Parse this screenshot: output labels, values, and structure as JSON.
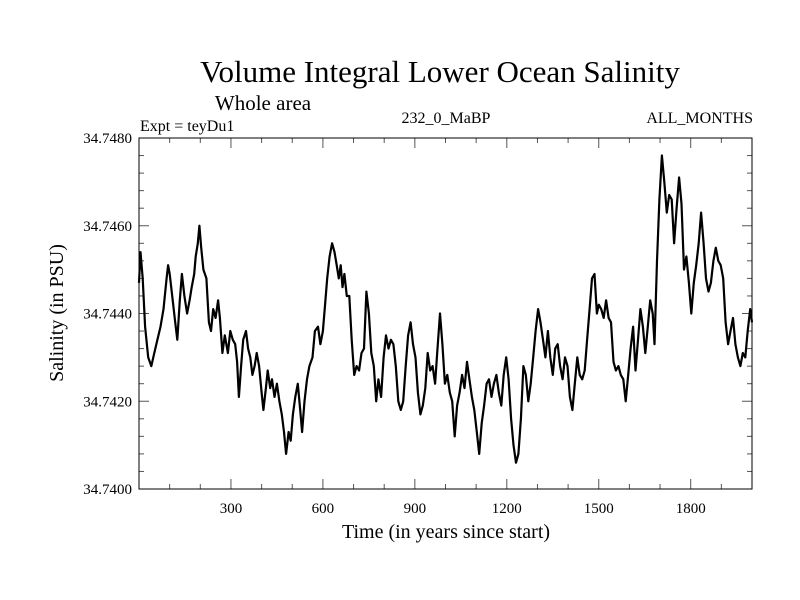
{
  "chart_data": {
    "type": "line",
    "title": "Volume Integral Lower Ocean Salinity",
    "subtitle": "Whole area",
    "annotations": {
      "left": "Expt = teyDu1",
      "center": "232_0_MaBP",
      "right": "ALL_MONTHS"
    },
    "xlabel": "Time (in years since start)",
    "ylabel": "Salinity (in PSU)",
    "xlim": [
      0,
      2000
    ],
    "ylim": [
      34.74,
      34.748
    ],
    "xticks": [
      300,
      600,
      900,
      1200,
      1500,
      1800
    ],
    "xtick_labels": [
      "300",
      "600",
      "900",
      "1200",
      "1500",
      "1800"
    ],
    "x_minor_step": 100,
    "yticks": [
      34.74,
      34.742,
      34.744,
      34.746,
      34.748
    ],
    "ytick_labels": [
      "34.7400",
      "34.7420",
      "34.7440",
      "34.7460",
      "34.7480"
    ],
    "y_minor_step": 0.0004,
    "grid": false,
    "legend": "none",
    "series": [
      {
        "name": "Salinity",
        "color": "#000000",
        "points": [
          [
            0,
            34.7447
          ],
          [
            5,
            34.7454
          ],
          [
            12,
            34.7448
          ],
          [
            20,
            34.7437
          ],
          [
            30,
            34.743
          ],
          [
            40,
            34.7428
          ],
          [
            50,
            34.7431
          ],
          [
            60,
            34.7434
          ],
          [
            70,
            34.7437
          ],
          [
            80,
            34.7441
          ],
          [
            90,
            34.7448
          ],
          [
            95,
            34.7451
          ],
          [
            100,
            34.7449
          ],
          [
            110,
            34.7443
          ],
          [
            118,
            34.7438
          ],
          [
            125,
            34.7434
          ],
          [
            133,
            34.7443
          ],
          [
            140,
            34.7449
          ],
          [
            148,
            34.7444
          ],
          [
            157,
            34.744
          ],
          [
            165,
            34.7443
          ],
          [
            172,
            34.7446
          ],
          [
            180,
            34.7449
          ],
          [
            185,
            34.7453
          ],
          [
            192,
            34.7456
          ],
          [
            197,
            34.746
          ],
          [
            203,
            34.7455
          ],
          [
            210,
            34.745
          ],
          [
            220,
            34.7448
          ],
          [
            228,
            34.7438
          ],
          [
            235,
            34.7436
          ],
          [
            242,
            34.7441
          ],
          [
            250,
            34.7439
          ],
          [
            258,
            34.7443
          ],
          [
            264,
            34.7439
          ],
          [
            272,
            34.7431
          ],
          [
            280,
            34.7435
          ],
          [
            290,
            34.7431
          ],
          [
            298,
            34.7436
          ],
          [
            306,
            34.7434
          ],
          [
            314,
            34.7433
          ],
          [
            320,
            34.7429
          ],
          [
            326,
            34.7421
          ],
          [
            333,
            34.7428
          ],
          [
            340,
            34.7434
          ],
          [
            349,
            34.7436
          ],
          [
            356,
            34.7432
          ],
          [
            363,
            34.743
          ],
          [
            370,
            34.7426
          ],
          [
            377,
            34.7428
          ],
          [
            384,
            34.7431
          ],
          [
            392,
            34.7428
          ],
          [
            400,
            34.7422
          ],
          [
            406,
            34.7418
          ],
          [
            414,
            34.7423
          ],
          [
            420,
            34.7427
          ],
          [
            428,
            34.7423
          ],
          [
            434,
            34.7425
          ],
          [
            442,
            34.7421
          ],
          [
            450,
            34.7424
          ],
          [
            458,
            34.742
          ],
          [
            466,
            34.7417
          ],
          [
            473,
            34.7413
          ],
          [
            480,
            34.7408
          ],
          [
            488,
            34.7413
          ],
          [
            495,
            34.7411
          ],
          [
            502,
            34.7417
          ],
          [
            510,
            34.7421
          ],
          [
            518,
            34.7424
          ],
          [
            526,
            34.7418
          ],
          [
            532,
            34.7413
          ],
          [
            540,
            34.742
          ],
          [
            548,
            34.7425
          ],
          [
            556,
            34.7428
          ],
          [
            566,
            34.743
          ],
          [
            574,
            34.7436
          ],
          [
            584,
            34.7437
          ],
          [
            592,
            34.7433
          ],
          [
            600,
            34.7436
          ],
          [
            606,
            34.7441
          ],
          [
            614,
            34.7448
          ],
          [
            622,
            34.7453
          ],
          [
            630,
            34.7456
          ],
          [
            638,
            34.7454
          ],
          [
            645,
            34.7451
          ],
          [
            652,
            34.7448
          ],
          [
            658,
            34.7451
          ],
          [
            664,
            34.7446
          ],
          [
            670,
            34.7449
          ],
          [
            678,
            34.7444
          ],
          [
            686,
            34.7444
          ],
          [
            694,
            34.7434
          ],
          [
            702,
            34.7426
          ],
          [
            710,
            34.7428
          ],
          [
            718,
            34.7427
          ],
          [
            726,
            34.7431
          ],
          [
            734,
            34.7432
          ],
          [
            742,
            34.7445
          ],
          [
            750,
            34.744
          ],
          [
            758,
            34.7431
          ],
          [
            766,
            34.7428
          ],
          [
            774,
            34.742
          ],
          [
            781,
            34.7425
          ],
          [
            790,
            34.7421
          ],
          [
            798,
            34.743
          ],
          [
            806,
            34.7435
          ],
          [
            814,
            34.7432
          ],
          [
            822,
            34.7434
          ],
          [
            830,
            34.7433
          ],
          [
            838,
            34.7428
          ],
          [
            846,
            34.742
          ],
          [
            854,
            34.7418
          ],
          [
            862,
            34.742
          ],
          [
            870,
            34.7428
          ],
          [
            878,
            34.7435
          ],
          [
            886,
            34.7438
          ],
          [
            894,
            34.7433
          ],
          [
            902,
            34.743
          ],
          [
            910,
            34.7422
          ],
          [
            918,
            34.7417
          ],
          [
            926,
            34.7419
          ],
          [
            934,
            34.7423
          ],
          [
            942,
            34.7431
          ],
          [
            950,
            34.7427
          ],
          [
            958,
            34.7428
          ],
          [
            966,
            34.7424
          ],
          [
            974,
            34.7432
          ],
          [
            982,
            34.744
          ],
          [
            990,
            34.7433
          ],
          [
            998,
            34.7424
          ],
          [
            1006,
            34.7426
          ],
          [
            1014,
            34.7422
          ],
          [
            1022,
            34.742
          ],
          [
            1030,
            34.7412
          ],
          [
            1038,
            34.7419
          ],
          [
            1046,
            34.7422
          ],
          [
            1054,
            34.7426
          ],
          [
            1062,
            34.7423
          ],
          [
            1070,
            34.7429
          ],
          [
            1078,
            34.7425
          ],
          [
            1086,
            34.7421
          ],
          [
            1094,
            34.7418
          ],
          [
            1102,
            34.7413
          ],
          [
            1110,
            34.7408
          ],
          [
            1118,
            34.7415
          ],
          [
            1126,
            34.7419
          ],
          [
            1134,
            34.7424
          ],
          [
            1142,
            34.7425
          ],
          [
            1150,
            34.7421
          ],
          [
            1158,
            34.7424
          ],
          [
            1166,
            34.7426
          ],
          [
            1174,
            34.7422
          ],
          [
            1182,
            34.7419
          ],
          [
            1190,
            34.7426
          ],
          [
            1198,
            34.743
          ],
          [
            1206,
            34.7425
          ],
          [
            1214,
            34.7416
          ],
          [
            1222,
            34.741
          ],
          [
            1230,
            34.7406
          ],
          [
            1238,
            34.7408
          ],
          [
            1246,
            34.7416
          ],
          [
            1254,
            34.7428
          ],
          [
            1262,
            34.7426
          ],
          [
            1270,
            34.742
          ],
          [
            1278,
            34.7424
          ],
          [
            1286,
            34.743
          ],
          [
            1294,
            34.7436
          ],
          [
            1302,
            34.7441
          ],
          [
            1310,
            34.7438
          ],
          [
            1318,
            34.7434
          ],
          [
            1326,
            34.743
          ],
          [
            1334,
            34.7436
          ],
          [
            1342,
            34.743
          ],
          [
            1350,
            34.7426
          ],
          [
            1358,
            34.7432
          ],
          [
            1366,
            34.7433
          ],
          [
            1374,
            34.7428
          ],
          [
            1382,
            34.7425
          ],
          [
            1390,
            34.743
          ],
          [
            1398,
            34.7428
          ],
          [
            1406,
            34.7421
          ],
          [
            1414,
            34.7418
          ],
          [
            1422,
            34.7424
          ],
          [
            1430,
            34.743
          ],
          [
            1438,
            34.7426
          ],
          [
            1446,
            34.7425
          ],
          [
            1454,
            34.7427
          ],
          [
            1462,
            34.7434
          ],
          [
            1470,
            34.7441
          ],
          [
            1478,
            34.7448
          ],
          [
            1486,
            34.7449
          ],
          [
            1494,
            34.744
          ],
          [
            1500,
            34.7442
          ],
          [
            1508,
            34.7441
          ],
          [
            1516,
            34.7439
          ],
          [
            1524,
            34.7443
          ],
          [
            1532,
            34.7439
          ],
          [
            1540,
            34.7438
          ],
          [
            1548,
            34.7429
          ],
          [
            1556,
            34.7427
          ],
          [
            1564,
            34.7428
          ],
          [
            1572,
            34.7426
          ],
          [
            1580,
            34.7425
          ],
          [
            1588,
            34.742
          ],
          [
            1596,
            34.7426
          ],
          [
            1604,
            34.7432
          ],
          [
            1612,
            34.7437
          ],
          [
            1620,
            34.7427
          ],
          [
            1628,
            34.7434
          ],
          [
            1636,
            34.7441
          ],
          [
            1644,
            34.7437
          ],
          [
            1652,
            34.7431
          ],
          [
            1660,
            34.7437
          ],
          [
            1668,
            34.7443
          ],
          [
            1676,
            34.744
          ],
          [
            1682,
            34.7433
          ],
          [
            1690,
            34.7452
          ],
          [
            1698,
            34.7466
          ],
          [
            1706,
            34.7476
          ],
          [
            1714,
            34.747
          ],
          [
            1722,
            34.7463
          ],
          [
            1730,
            34.7467
          ],
          [
            1738,
            34.7466
          ],
          [
            1746,
            34.7456
          ],
          [
            1754,
            34.7464
          ],
          [
            1762,
            34.7471
          ],
          [
            1770,
            34.7465
          ],
          [
            1778,
            34.745
          ],
          [
            1786,
            34.7453
          ],
          [
            1794,
            34.7447
          ],
          [
            1802,
            34.744
          ],
          [
            1810,
            34.7447
          ],
          [
            1818,
            34.7451
          ],
          [
            1826,
            34.7456
          ],
          [
            1834,
            34.7463
          ],
          [
            1842,
            34.7456
          ],
          [
            1850,
            34.7448
          ],
          [
            1858,
            34.7445
          ],
          [
            1866,
            34.7447
          ],
          [
            1874,
            34.7452
          ],
          [
            1882,
            34.7455
          ],
          [
            1890,
            34.7452
          ],
          [
            1898,
            34.7451
          ],
          [
            1906,
            34.7448
          ],
          [
            1914,
            34.7438
          ],
          [
            1922,
            34.7433
          ],
          [
            1930,
            34.7436
          ],
          [
            1938,
            34.7439
          ],
          [
            1946,
            34.7433
          ],
          [
            1954,
            34.743
          ],
          [
            1962,
            34.7428
          ],
          [
            1970,
            34.7431
          ],
          [
            1978,
            34.743
          ],
          [
            1986,
            34.7436
          ],
          [
            1994,
            34.7441
          ],
          [
            2000,
            34.7438
          ]
        ]
      }
    ]
  }
}
